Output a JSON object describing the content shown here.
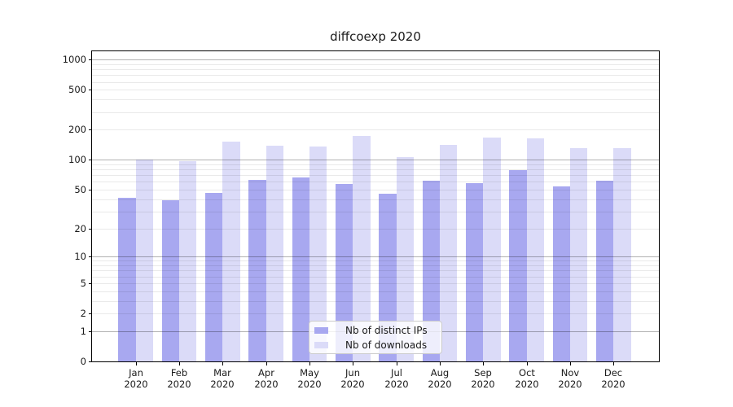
{
  "title": "diffcoexp 2020",
  "colors": {
    "bar_distinct_ips": "#a8a8f0",
    "bar_downloads": "#dbdbf8",
    "axis": "#000000",
    "legend_border": "#cccccc"
  },
  "y_axis": {
    "scale": "log10(value+1)",
    "tick_values": [
      0,
      1,
      2,
      5,
      10,
      20,
      50,
      100,
      200,
      500,
      1000
    ],
    "tick_labels": [
      "0",
      "1",
      "2",
      "5",
      "10",
      "20",
      "50",
      "100",
      "200",
      "500",
      "1000"
    ],
    "major_gridlines": [
      1,
      10,
      100,
      1000
    ],
    "minor_gridlines": [
      2,
      3,
      4,
      5,
      6,
      7,
      8,
      9,
      20,
      30,
      40,
      50,
      60,
      70,
      80,
      90,
      200,
      300,
      400,
      500,
      600,
      700,
      800,
      900
    ]
  },
  "x_axis": {
    "months": [
      "Jan",
      "Feb",
      "Mar",
      "Apr",
      "May",
      "Jun",
      "Jul",
      "Aug",
      "Sep",
      "Oct",
      "Nov",
      "Dec"
    ],
    "year": "2020"
  },
  "legend": {
    "items": [
      {
        "label": "Nb of distinct IPs",
        "color": "#a8a8f0"
      },
      {
        "label": "Nb of downloads",
        "color": "#dbdbf8"
      }
    ]
  },
  "chart_data": {
    "type": "bar",
    "title": "diffcoexp 2020",
    "categories": [
      "Jan 2020",
      "Feb 2020",
      "Mar 2020",
      "Apr 2020",
      "May 2020",
      "Jun 2020",
      "Jul 2020",
      "Aug 2020",
      "Sep 2020",
      "Oct 2020",
      "Nov 2020",
      "Dec 2020"
    ],
    "series": [
      {
        "name": "Nb of distinct IPs",
        "color": "#a8a8f0",
        "values": [
          41,
          39,
          46,
          63,
          66,
          57,
          45,
          62,
          58,
          78,
          54,
          62
        ]
      },
      {
        "name": "Nb of downloads",
        "color": "#dbdbf8",
        "values": [
          101,
          97,
          152,
          139,
          136,
          172,
          107,
          140,
          168,
          165,
          130,
          132
        ]
      }
    ],
    "xlabel": "",
    "ylabel": "",
    "yscale": "pseudo-log log10(y+1)",
    "ylim": [
      0,
      1200
    ],
    "grid": true,
    "legend_position": "lower center"
  }
}
